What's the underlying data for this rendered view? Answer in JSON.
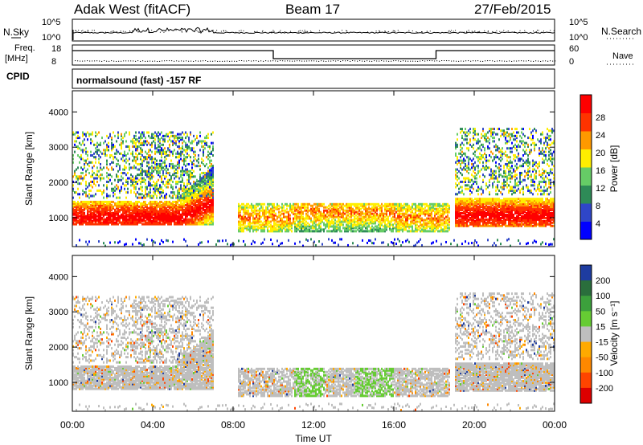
{
  "header": {
    "site": "Adak West (fitACF)",
    "beam": "Beam 17",
    "date": "27/Feb/2015"
  },
  "top_panels": {
    "nsky_label": "N.Sky",
    "nsearch_label": "N.Search",
    "nsky_ticks": [
      "10^5",
      "10^0"
    ],
    "nsearch_ticks": [
      "10^5",
      "10^0"
    ],
    "freq_label": "Freq.",
    "freq_unit": "[MHz]",
    "freq_ticks": [
      "18",
      "8"
    ],
    "nave_label": "Nave",
    "nave_ticks": [
      "60",
      "0"
    ],
    "cpid_label": "CPID",
    "cpid_text": "normalsound (fast) -157 RF"
  },
  "chart_data": [
    {
      "type": "heatmap",
      "panel": "power",
      "ylabel": "Slant Range [km]",
      "xlabel": "",
      "x_range": [
        "00:00",
        "24:00"
      ],
      "ylim": [
        180,
        4600
      ],
      "yticks": [
        "4000",
        "3000",
        "2000",
        "1000"
      ],
      "colorbar": {
        "label": "Power [dB]",
        "ticks": [
          "28",
          "24",
          "20",
          "16",
          "12",
          "8",
          "4"
        ],
        "colors": [
          "#0000ff",
          "#2f46c8",
          "#2e8b57",
          "#66cc66",
          "#ffee00",
          "#ff9900",
          "#ff3300",
          "#ff0000"
        ]
      }
    },
    {
      "type": "heatmap",
      "panel": "velocity",
      "ylabel": "Slant Range [km]",
      "xlabel": "Time UT",
      "x_range": [
        "00:00",
        "24:00"
      ],
      "xticks": [
        "00:00",
        "04:00",
        "08:00",
        "12:00",
        "16:00",
        "20:00",
        "00:00"
      ],
      "ylim": [
        180,
        4600
      ],
      "yticks": [
        "4000",
        "3000",
        "2000",
        "1000"
      ],
      "colorbar": {
        "label": "Velocity [m s⁻¹]",
        "ticks": [
          "200",
          "100",
          "50",
          "15",
          "-15",
          "-50",
          "-100",
          "-200"
        ],
        "colors": [
          "#1e3ca0",
          "#2a6e3c",
          "#3ca03c",
          "#66cc33",
          "#bebebe",
          "#ffaa00",
          "#ff8800",
          "#ff4400",
          "#dd0000"
        ]
      }
    }
  ]
}
